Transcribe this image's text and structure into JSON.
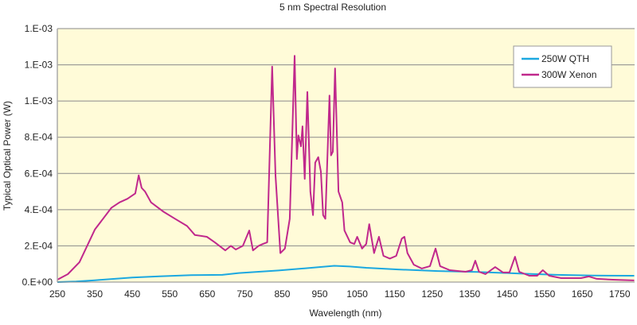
{
  "chart_data": {
    "type": "line",
    "title": "5 nm Spectral Resolution",
    "xlabel": "Wavelength (nm)",
    "ylabel": "Typical Optical Power (W)",
    "xlim": [
      250,
      1790
    ],
    "ylim": [
      0,
      0.0014
    ],
    "grid": true,
    "legend_position": "top-right",
    "x_ticks": [
      250,
      350,
      450,
      550,
      650,
      750,
      850,
      950,
      1050,
      1150,
      1250,
      1350,
      1450,
      1550,
      1650,
      1750
    ],
    "y_ticks": [
      {
        "value": 0,
        "label": "0.E+00"
      },
      {
        "value": 0.0002,
        "label": "2.E-04"
      },
      {
        "value": 0.0004,
        "label": "4.E-04"
      },
      {
        "value": 0.0006,
        "label": "6.E-04"
      },
      {
        "value": 0.0008,
        "label": "8.E-04"
      },
      {
        "value": 0.001,
        "label": "1.E-03"
      },
      {
        "value": 0.0012,
        "label": "1.E-03"
      },
      {
        "value": 0.0014,
        "label": "1.E-03"
      }
    ],
    "series": [
      {
        "name": "250W QTH",
        "color": "#1ba8e0",
        "points": [
          [
            250,
            0
          ],
          [
            300,
            3e-06
          ],
          [
            350,
            1e-05
          ],
          [
            450,
            2.5e-05
          ],
          [
            522,
            3.2e-05
          ],
          [
            607,
            3.8e-05
          ],
          [
            690,
            4e-05
          ],
          [
            734,
            5e-05
          ],
          [
            840,
            6.4e-05
          ],
          [
            946,
            8.2e-05
          ],
          [
            989,
            9e-05
          ],
          [
            1030,
            8.6e-05
          ],
          [
            1074,
            7.9e-05
          ],
          [
            1159,
            7e-05
          ],
          [
            1265,
            6.1e-05
          ],
          [
            1371,
            5.6e-05
          ],
          [
            1477,
            4.8e-05
          ],
          [
            1583,
            4e-05
          ],
          [
            1680,
            3.6e-05
          ],
          [
            1789,
            3.5e-05
          ]
        ]
      },
      {
        "name": "300W Xenon",
        "color": "#c0288c",
        "points": [
          [
            250,
            1.3e-05
          ],
          [
            278,
            4.4e-05
          ],
          [
            309,
            0.00011
          ],
          [
            350,
            0.00029
          ],
          [
            394,
            0.00041
          ],
          [
            416,
            0.00044
          ],
          [
            437,
            0.00046
          ],
          [
            458,
            0.00049
          ],
          [
            467,
            0.00059
          ],
          [
            475,
            0.00052
          ],
          [
            484,
            0.0005
          ],
          [
            500,
            0.00044
          ],
          [
            532,
            0.00039
          ],
          [
            564,
            0.00035
          ],
          [
            596,
            0.00031
          ],
          [
            617,
            0.00026
          ],
          [
            649,
            0.00025
          ],
          [
            670,
            0.00022
          ],
          [
            698,
            0.000175
          ],
          [
            713,
            0.0002
          ],
          [
            726,
            0.00018
          ],
          [
            745,
            0.0002
          ],
          [
            762,
            0.000285
          ],
          [
            772,
            0.000175
          ],
          [
            787,
            0.0002
          ],
          [
            798,
            0.00021
          ],
          [
            810,
            0.00022
          ],
          [
            823,
            0.00119
          ],
          [
            832,
            0.00059
          ],
          [
            845,
            0.00016
          ],
          [
            857,
            0.000185
          ],
          [
            870,
            0.00035
          ],
          [
            883,
            0.00125
          ],
          [
            889,
            0.00068
          ],
          [
            893,
            0.00081
          ],
          [
            900,
            0.00075
          ],
          [
            904,
            0.00086
          ],
          [
            910,
            0.00057
          ],
          [
            917,
            0.00105
          ],
          [
            925,
            0.0005
          ],
          [
            932,
            0.00037
          ],
          [
            938,
            0.00066
          ],
          [
            946,
            0.00069
          ],
          [
            953,
            0.00061
          ],
          [
            959,
            0.00037
          ],
          [
            965,
            0.00035
          ],
          [
            976,
            0.00103
          ],
          [
            980,
            0.0007
          ],
          [
            985,
            0.00072
          ],
          [
            991,
            0.00118
          ],
          [
            1000,
            0.0005
          ],
          [
            1010,
            0.00044
          ],
          [
            1016,
            0.000285
          ],
          [
            1031,
            0.00022
          ],
          [
            1042,
            0.00021
          ],
          [
            1050,
            0.00025
          ],
          [
            1063,
            0.000185
          ],
          [
            1074,
            0.00021
          ],
          [
            1082,
            0.00032
          ],
          [
            1095,
            0.00016
          ],
          [
            1108,
            0.00025
          ],
          [
            1120,
            0.000145
          ],
          [
            1137,
            0.00013
          ],
          [
            1154,
            0.000145
          ],
          [
            1169,
            0.00024
          ],
          [
            1176,
            0.00025
          ],
          [
            1184,
            0.00016
          ],
          [
            1201,
            9.6e-05
          ],
          [
            1222,
            7.5e-05
          ],
          [
            1244,
            8.8e-05
          ],
          [
            1259,
            0.000185
          ],
          [
            1271,
            8.8e-05
          ],
          [
            1297,
            6.6e-05
          ],
          [
            1339,
            5.7e-05
          ],
          [
            1356,
            6.6e-05
          ],
          [
            1365,
            0.000118
          ],
          [
            1375,
            5.7e-05
          ],
          [
            1392,
            4.4e-05
          ],
          [
            1418,
            8.3e-05
          ],
          [
            1439,
            5.3e-05
          ],
          [
            1456,
            5.3e-05
          ],
          [
            1471,
            0.00014
          ],
          [
            1482,
            5.7e-05
          ],
          [
            1509,
            3.5e-05
          ],
          [
            1530,
            3.5e-05
          ],
          [
            1545,
            6.6e-05
          ],
          [
            1562,
            3.5e-05
          ],
          [
            1594,
            2.2e-05
          ],
          [
            1647,
            2.2e-05
          ],
          [
            1668,
            3.1e-05
          ],
          [
            1689,
            1.8e-05
          ],
          [
            1732,
            1.3e-05
          ],
          [
            1789,
            9e-06
          ]
        ]
      }
    ]
  }
}
